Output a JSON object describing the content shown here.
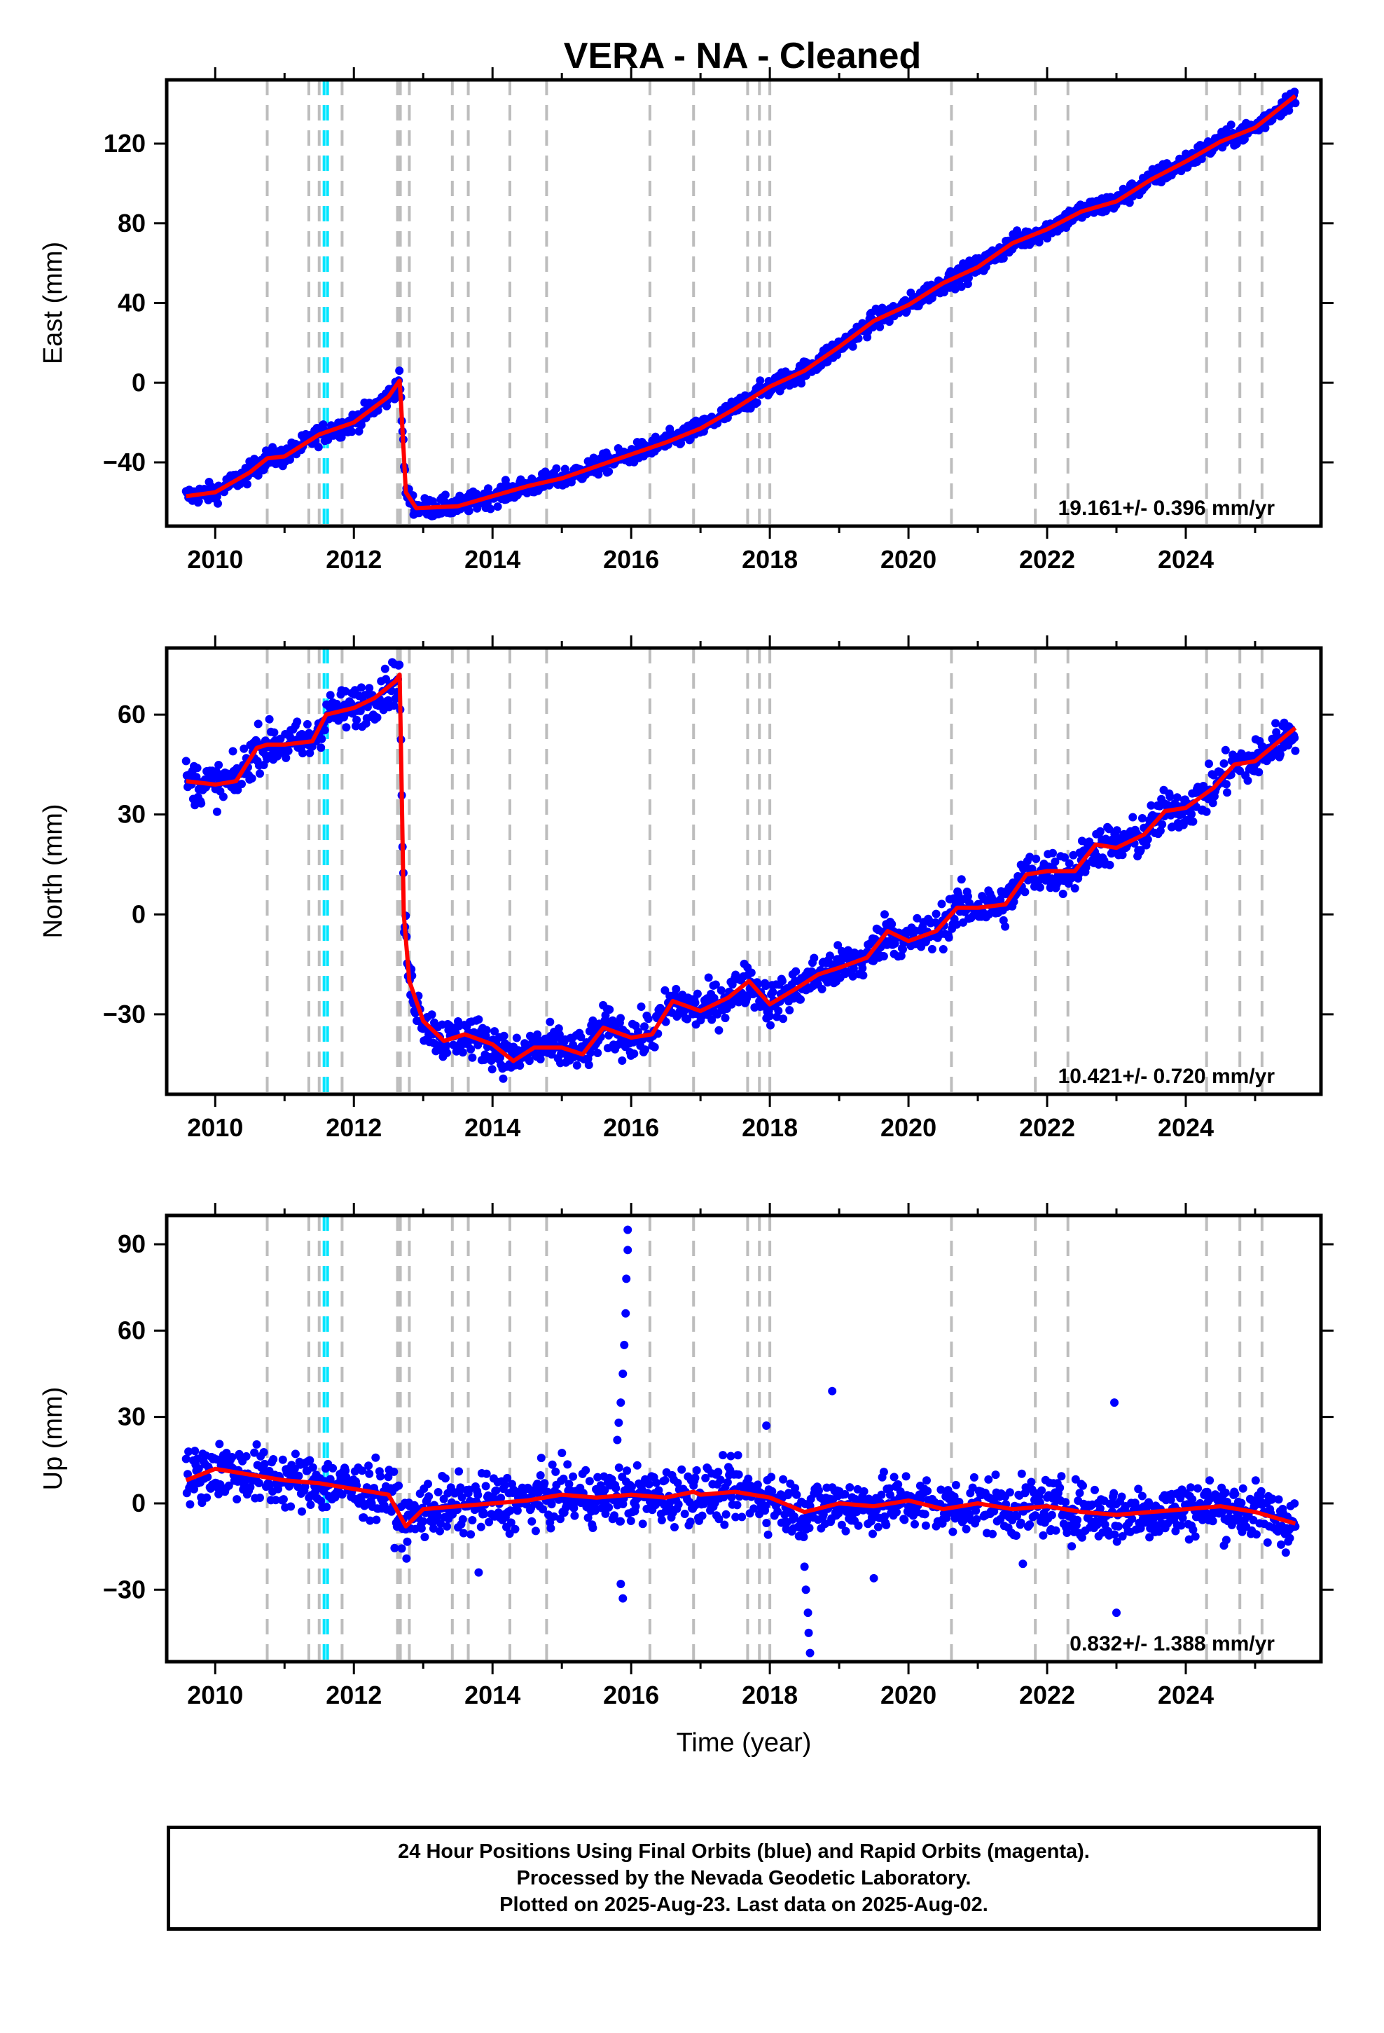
{
  "title": "VERA  - NA - Cleaned",
  "footer": {
    "line1": "24 Hour Positions Using Final Orbits (blue) and Rapid Orbits (magenta).",
    "line2": "Processed by the Nevada Geodetic Laboratory.",
    "line3": "Plotted on 2025-Aug-23. Last data on 2025-Aug-02."
  },
  "colors": {
    "data": "#0000ff",
    "model": "#ff0000",
    "equipment_change": "#bdbdbd",
    "earthquake": "#00e5ff"
  },
  "chart_data": [
    {
      "type": "scatter",
      "panel": "east",
      "xlabel": "",
      "ylabel": "East (mm)",
      "xlim": [
        2009.3,
        2025.95
      ],
      "ylim": [
        -72,
        152
      ],
      "x_ticks": [
        2010,
        2012,
        2014,
        2016,
        2018,
        2020,
        2022,
        2024
      ],
      "y_ticks": [
        -40,
        0,
        40,
        80,
        120
      ],
      "y_tick_labels": [
        "−40",
        "0",
        "40",
        "80",
        "120"
      ],
      "rate_label": "19.161+/- 0.396 mm/yr",
      "trend": {
        "x": [
          2009.58,
          2010.0,
          2010.5,
          2010.75,
          2011.0,
          2011.5,
          2012.0,
          2012.5,
          2012.66,
          2012.68,
          2012.75,
          2012.9,
          2013.5,
          2014.0,
          2014.5,
          2015.0,
          2015.5,
          2016.0,
          2016.5,
          2017.0,
          2017.5,
          2018.0,
          2018.5,
          2019.0,
          2019.5,
          2020.0,
          2020.5,
          2021.0,
          2021.5,
          2022.0,
          2022.5,
          2023.0,
          2023.5,
          2024.0,
          2024.5,
          2025.0,
          2025.58
        ],
        "y": [
          -57,
          -55,
          -45,
          -38,
          -37,
          -26,
          -20,
          -7,
          1,
          -10,
          -55,
          -63,
          -62,
          -57,
          -52,
          -48,
          -42,
          -36,
          -30,
          -23,
          -13,
          -2,
          6,
          18,
          31,
          39,
          50,
          58,
          70,
          77,
          86,
          91,
          102,
          111,
          121,
          128,
          144
        ]
      },
      "scatter_spread_mm": 3.5,
      "equipment_changes": [
        2010.75,
        2011.35,
        2011.5,
        2011.83,
        2012.63,
        2012.67,
        2012.8,
        2013.42,
        2013.65,
        2014.25,
        2014.78,
        2016.27,
        2016.9,
        2017.68,
        2017.85,
        2018.0,
        2020.62,
        2021.83,
        2022.3,
        2024.3,
        2024.78,
        2025.1
      ],
      "earthquakes": [
        2011.57,
        2011.62
      ]
    },
    {
      "type": "scatter",
      "panel": "north",
      "xlabel": "",
      "ylabel": "North (mm)",
      "xlim": [
        2009.3,
        2025.95
      ],
      "ylim": [
        -54,
        80
      ],
      "x_ticks": [
        2010,
        2012,
        2014,
        2016,
        2018,
        2020,
        2022,
        2024
      ],
      "y_ticks": [
        -30,
        0,
        30,
        60
      ],
      "y_tick_labels": [
        "−30",
        "0",
        "30",
        "60"
      ],
      "rate_label": "10.421+/- 0.720 mm/yr",
      "trend": {
        "x": [
          2009.58,
          2010.0,
          2010.3,
          2010.6,
          2010.75,
          2011.0,
          2011.4,
          2011.6,
          2012.0,
          2012.3,
          2012.6,
          2012.66,
          2012.68,
          2012.72,
          2012.8,
          2013.0,
          2013.3,
          2013.6,
          2014.0,
          2014.3,
          2014.6,
          2015.0,
          2015.3,
          2015.6,
          2016.0,
          2016.3,
          2016.6,
          2017.0,
          2017.4,
          2017.7,
          2018.0,
          2018.4,
          2018.7,
          2019.0,
          2019.4,
          2019.7,
          2020.0,
          2020.4,
          2020.7,
          2021.0,
          2021.4,
          2021.7,
          2022.0,
          2022.4,
          2022.7,
          2023.0,
          2023.4,
          2023.7,
          2024.0,
          2024.4,
          2024.7,
          2025.0,
          2025.58
        ],
        "y": [
          40,
          39,
          40,
          50,
          51,
          51,
          52,
          60,
          62,
          65,
          70,
          72,
          50,
          0,
          -20,
          -32,
          -38,
          -36,
          -39,
          -44,
          -40,
          -40,
          -42,
          -34,
          -37,
          -36,
          -26,
          -29,
          -25,
          -20,
          -27,
          -22,
          -18,
          -16,
          -13,
          -5,
          -8,
          -5,
          2,
          2,
          3,
          12,
          13,
          13,
          21,
          20,
          24,
          31,
          32,
          38,
          45,
          46,
          56
        ]
      },
      "scatter_spread_mm": 4.5,
      "equipment_changes": [
        2010.75,
        2011.35,
        2011.5,
        2011.83,
        2012.63,
        2012.67,
        2012.8,
        2013.42,
        2013.65,
        2014.25,
        2014.78,
        2016.27,
        2016.9,
        2017.68,
        2017.85,
        2018.0,
        2020.62,
        2021.83,
        2022.3,
        2024.3,
        2024.78,
        2025.1
      ],
      "earthquakes": [
        2011.57,
        2011.62
      ]
    },
    {
      "type": "scatter",
      "panel": "up",
      "xlabel": "Time (year)",
      "ylabel": "Up (mm)",
      "xlim": [
        2009.3,
        2025.95
      ],
      "ylim": [
        -55,
        100
      ],
      "x_ticks": [
        2010,
        2012,
        2014,
        2016,
        2018,
        2020,
        2022,
        2024
      ],
      "y_ticks": [
        -30,
        0,
        30,
        60,
        90
      ],
      "y_tick_labels": [
        "−30",
        "0",
        "30",
        "60",
        "90"
      ],
      "rate_label": "0.832+/- 1.388 mm/yr",
      "trend": {
        "x": [
          2009.58,
          2010.0,
          2010.5,
          2011.0,
          2011.5,
          2012.0,
          2012.5,
          2012.75,
          2013.0,
          2013.5,
          2014.0,
          2014.5,
          2015.0,
          2015.5,
          2016.0,
          2016.5,
          2016.9,
          2017.0,
          2017.5,
          2018.0,
          2018.5,
          2019.0,
          2019.5,
          2020.0,
          2020.5,
          2021.0,
          2021.5,
          2022.0,
          2022.5,
          2023.0,
          2023.5,
          2024.0,
          2024.5,
          2025.0,
          2025.58
        ],
        "y": [
          8,
          12,
          10,
          8,
          7,
          5,
          3,
          -8,
          -2,
          -1,
          0,
          1,
          3,
          2,
          3,
          2,
          4,
          3,
          4,
          2,
          -3,
          0,
          -1,
          1,
          -2,
          0,
          -2,
          -1,
          -3,
          -4,
          -3,
          -2,
          -1,
          -3,
          -7
        ]
      },
      "scatter_spread_mm": 7,
      "outlier_points": [
        {
          "x": 2015.95,
          "y": 95
        },
        {
          "x": 2015.95,
          "y": 88
        },
        {
          "x": 2015.93,
          "y": 78
        },
        {
          "x": 2015.92,
          "y": 66
        },
        {
          "x": 2015.9,
          "y": 55
        },
        {
          "x": 2015.88,
          "y": 45
        },
        {
          "x": 2015.85,
          "y": 35
        },
        {
          "x": 2015.82,
          "y": 28
        },
        {
          "x": 2015.8,
          "y": 22
        },
        {
          "x": 2015.85,
          "y": -28
        },
        {
          "x": 2015.88,
          "y": -33
        },
        {
          "x": 2018.58,
          "y": -52
        },
        {
          "x": 2018.56,
          "y": -45
        },
        {
          "x": 2018.55,
          "y": -38
        },
        {
          "x": 2018.52,
          "y": -30
        },
        {
          "x": 2018.5,
          "y": -22
        },
        {
          "x": 2017.95,
          "y": 27
        },
        {
          "x": 2018.9,
          "y": 39
        },
        {
          "x": 2022.97,
          "y": 35
        },
        {
          "x": 2023.0,
          "y": -38
        },
        {
          "x": 2019.5,
          "y": -26
        },
        {
          "x": 2013.8,
          "y": -24
        },
        {
          "x": 2021.65,
          "y": -21
        }
      ],
      "equipment_changes": [
        2010.75,
        2011.35,
        2011.5,
        2011.83,
        2012.63,
        2012.67,
        2012.8,
        2013.42,
        2013.65,
        2014.25,
        2014.78,
        2016.27,
        2016.9,
        2017.68,
        2017.85,
        2018.0,
        2020.62,
        2021.83,
        2022.3,
        2024.3,
        2024.78,
        2025.1
      ],
      "earthquakes": [
        2011.57,
        2011.62
      ]
    }
  ]
}
